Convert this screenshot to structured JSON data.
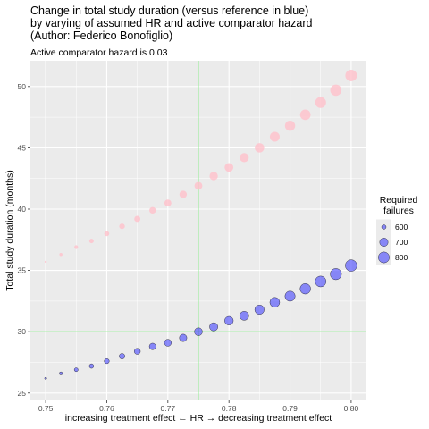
{
  "chart_data": {
    "type": "scatter",
    "title_lines": [
      "Change in total study duration (versus reference in blue)",
      "by varying of assumed HR and active comparator hazard",
      "(Author: Federico Bonofiglio)"
    ],
    "subtitle": "Active comparator hazard is 0.03",
    "xlabel": "increasing treatment effect ← HR → decreasing treatment effect",
    "ylabel": "Total study duration (months)",
    "xlim": [
      0.7475,
      0.8025
    ],
    "ylim": [
      24.4,
      52.1
    ],
    "x_ticks": [
      0.75,
      0.76,
      0.77,
      0.78,
      0.79,
      0.8
    ],
    "x_tick_labels": [
      "0.75",
      "0.76",
      "0.77",
      "0.78",
      "0.79",
      "0.80"
    ],
    "y_ticks": [
      25,
      30,
      35,
      40,
      45,
      50
    ],
    "y_tick_labels": [
      "25",
      "30",
      "35",
      "40",
      "45",
      "50"
    ],
    "grid": true,
    "reference_lines": {
      "x": 0.775,
      "y": 30,
      "color": "#90ee90"
    },
    "legend": {
      "title_lines": [
        "Required",
        "failures"
      ],
      "placement": "right",
      "entries": [
        {
          "label": "600",
          "value": 600
        },
        {
          "label": "700",
          "value": 700
        },
        {
          "label": "800",
          "value": 800
        }
      ]
    },
    "colors": {
      "panel": "#ebebeb",
      "grid": "#ffffff",
      "blue": "#3333ff",
      "pink": "#ffc0cb"
    },
    "series": [
      {
        "color": "pink",
        "x": [
          0.75,
          0.7525,
          0.755,
          0.7575,
          0.76,
          0.7625,
          0.765,
          0.7675,
          0.77,
          0.7725,
          0.775,
          0.7775,
          0.78,
          0.7825,
          0.785,
          0.7875,
          0.79,
          0.7925,
          0.795,
          0.7975,
          0.8
        ],
        "y": [
          35.7,
          36.3,
          36.9,
          37.4,
          38.0,
          38.6,
          39.2,
          39.9,
          40.5,
          41.2,
          41.9,
          42.7,
          43.4,
          44.2,
          45.0,
          45.9,
          46.8,
          47.7,
          48.7,
          49.7,
          50.9
        ],
        "failures": [
          570,
          580,
          590,
          600,
          610,
          622,
          634,
          646,
          658,
          670,
          683,
          696,
          709,
          722,
          736,
          750,
          764,
          779,
          794,
          810,
          826
        ]
      },
      {
        "color": "blue",
        "x": [
          0.75,
          0.7525,
          0.755,
          0.7575,
          0.76,
          0.7625,
          0.765,
          0.7675,
          0.77,
          0.7725,
          0.775,
          0.7775,
          0.78,
          0.7825,
          0.785,
          0.7875,
          0.79,
          0.7925,
          0.795,
          0.7975,
          0.8
        ],
        "y": [
          26.2,
          26.6,
          26.9,
          27.2,
          27.6,
          28.0,
          28.4,
          28.8,
          29.1,
          29.5,
          30.0,
          30.4,
          30.9,
          31.3,
          31.8,
          32.4,
          32.9,
          33.5,
          34.1,
          34.7,
          35.4
        ],
        "failures": [
          570,
          580,
          590,
          600,
          610,
          622,
          634,
          646,
          658,
          670,
          683,
          696,
          709,
          722,
          736,
          750,
          764,
          779,
          794,
          810,
          826
        ]
      }
    ]
  }
}
